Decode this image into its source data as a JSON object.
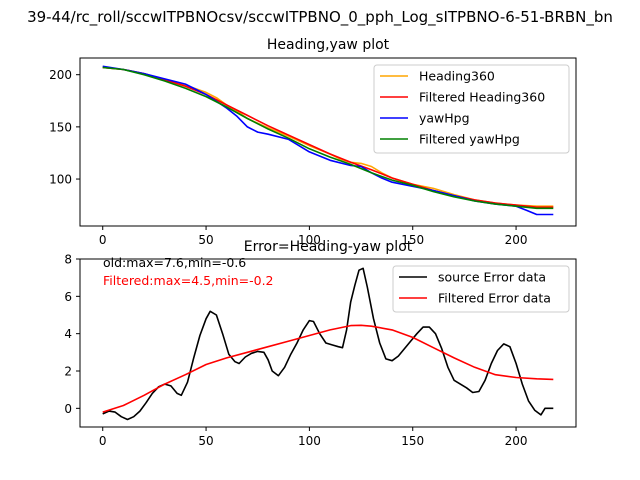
{
  "figure_title": "39-44/rc_roll/sccwITPBNOcsv/sccwITPBNO_0_pph_Log_sITPBNO-6-51-BRBN_bn",
  "chart_data": [
    {
      "type": "line",
      "title": "Heading,yaw plot",
      "xlabel": "",
      "ylabel": "",
      "xlim": [
        -11,
        229
      ],
      "ylim": [
        55,
        216
      ],
      "xticks": [
        0,
        50,
        100,
        150,
        200
      ],
      "yticks": [
        100,
        150,
        200
      ],
      "grid": false,
      "legend_position": "upper right",
      "series": [
        {
          "name": "Heading360",
          "color": "#ffa500",
          "points": [
            [
              0,
              207
            ],
            [
              10,
              205
            ],
            [
              20,
              201
            ],
            [
              30,
              195
            ],
            [
              40,
              190
            ],
            [
              50,
              183
            ],
            [
              55,
              178
            ],
            [
              60,
              171
            ],
            [
              65,
              165
            ],
            [
              70,
              158
            ],
            [
              80,
              149
            ],
            [
              90,
              141
            ],
            [
              100,
              132
            ],
            [
              110,
              124
            ],
            [
              115,
              119
            ],
            [
              120,
              116
            ],
            [
              125,
              115
            ],
            [
              130,
              112
            ],
            [
              135,
              106
            ],
            [
              140,
              101
            ],
            [
              150,
              95
            ],
            [
              160,
              91
            ],
            [
              170,
              85
            ],
            [
              180,
              80
            ],
            [
              190,
              77
            ],
            [
              200,
              75
            ],
            [
              210,
              74
            ],
            [
              218,
              74
            ]
          ]
        },
        {
          "name": "Filtered Heading360",
          "color": "#ff0000",
          "points": [
            [
              0,
              207
            ],
            [
              10,
              205
            ],
            [
              20,
              201
            ],
            [
              30,
              195
            ],
            [
              40,
              189
            ],
            [
              50,
              181
            ],
            [
              60,
              171
            ],
            [
              70,
              161
            ],
            [
              80,
              151
            ],
            [
              90,
              142
            ],
            [
              100,
              133
            ],
            [
              110,
              124
            ],
            [
              120,
              116
            ],
            [
              130,
              109
            ],
            [
              140,
              101
            ],
            [
              150,
              95
            ],
            [
              160,
              89
            ],
            [
              170,
              84
            ],
            [
              180,
              80
            ],
            [
              190,
              77
            ],
            [
              200,
              75
            ],
            [
              210,
              73
            ],
            [
              218,
              73
            ]
          ]
        },
        {
          "name": "yawHpg",
          "color": "#0000ff",
          "points": [
            [
              0,
              208
            ],
            [
              10,
              205
            ],
            [
              20,
              201
            ],
            [
              30,
              196
            ],
            [
              40,
              191
            ],
            [
              50,
              181
            ],
            [
              60,
              168
            ],
            [
              65,
              160
            ],
            [
              70,
              150
            ],
            [
              75,
              145
            ],
            [
              80,
              143
            ],
            [
              90,
              138
            ],
            [
              100,
              126
            ],
            [
              110,
              118
            ],
            [
              120,
              113
            ],
            [
              125,
              112
            ],
            [
              130,
              106
            ],
            [
              135,
              101
            ],
            [
              140,
              97
            ],
            [
              150,
              93
            ],
            [
              160,
              89
            ],
            [
              170,
              84
            ],
            [
              180,
              79
            ],
            [
              190,
              76
            ],
            [
              200,
              74
            ],
            [
              205,
              70
            ],
            [
              210,
              66
            ],
            [
              218,
              66
            ]
          ]
        },
        {
          "name": "Filtered yawHpg",
          "color": "#008000",
          "points": [
            [
              0,
              207
            ],
            [
              10,
              205
            ],
            [
              20,
              200
            ],
            [
              30,
              194
            ],
            [
              40,
              187
            ],
            [
              50,
              179
            ],
            [
              60,
              169
            ],
            [
              70,
              158
            ],
            [
              80,
              148
            ],
            [
              90,
              139
            ],
            [
              100,
              129
            ],
            [
              110,
              121
            ],
            [
              120,
              114
            ],
            [
              130,
              106
            ],
            [
              140,
              99
            ],
            [
              150,
              94
            ],
            [
              160,
              88
            ],
            [
              170,
              83
            ],
            [
              180,
              79
            ],
            [
              190,
              76
            ],
            [
              200,
              74
            ],
            [
              210,
              72
            ],
            [
              218,
              72
            ]
          ]
        }
      ]
    },
    {
      "type": "line",
      "title": "Error=Heading-yaw plot",
      "xlabel": "",
      "ylabel": "",
      "xlim": [
        -11,
        229
      ],
      "ylim": [
        -1,
        8
      ],
      "xticks": [
        0,
        50,
        100,
        150,
        200
      ],
      "yticks": [
        0,
        2,
        4,
        6,
        8
      ],
      "grid": false,
      "legend_position": "upper right",
      "annotations": [
        {
          "text": "old:max=7.6,min=-0.6",
          "color": "#000000"
        },
        {
          "text": "Filtered:max=4.5,min=-0.2",
          "color": "#ff0000"
        }
      ],
      "series": [
        {
          "name": "source Error data",
          "color": "#000000",
          "points": [
            [
              0,
              -0.3
            ],
            [
              3,
              -0.15
            ],
            [
              6,
              -0.2
            ],
            [
              9,
              -0.45
            ],
            [
              12,
              -0.6
            ],
            [
              15,
              -0.45
            ],
            [
              18,
              -0.15
            ],
            [
              21,
              0.3
            ],
            [
              24,
              0.8
            ],
            [
              27,
              1.15
            ],
            [
              30,
              1.3
            ],
            [
              33,
              1.2
            ],
            [
              36,
              0.8
            ],
            [
              38,
              0.7
            ],
            [
              41,
              1.4
            ],
            [
              44,
              2.7
            ],
            [
              47,
              3.9
            ],
            [
              50,
              4.8
            ],
            [
              52,
              5.2
            ],
            [
              55,
              5.0
            ],
            [
              58,
              4.0
            ],
            [
              61,
              2.9
            ],
            [
              64,
              2.5
            ],
            [
              66,
              2.4
            ],
            [
              69,
              2.75
            ],
            [
              72,
              2.95
            ],
            [
              75,
              3.05
            ],
            [
              78,
              3.0
            ],
            [
              80,
              2.6
            ],
            [
              82,
              2.0
            ],
            [
              85,
              1.75
            ],
            [
              88,
              2.2
            ],
            [
              91,
              2.9
            ],
            [
              94,
              3.5
            ],
            [
              97,
              4.2
            ],
            [
              100,
              4.7
            ],
            [
              102,
              4.65
            ],
            [
              105,
              4.0
            ],
            [
              108,
              3.5
            ],
            [
              111,
              3.4
            ],
            [
              114,
              3.3
            ],
            [
              116,
              3.25
            ],
            [
              118,
              4.2
            ],
            [
              120,
              5.7
            ],
            [
              122,
              6.6
            ],
            [
              124,
              7.4
            ],
            [
              126,
              7.5
            ],
            [
              128,
              6.5
            ],
            [
              131,
              4.8
            ],
            [
              134,
              3.5
            ],
            [
              137,
              2.65
            ],
            [
              140,
              2.55
            ],
            [
              143,
              2.8
            ],
            [
              146,
              3.2
            ],
            [
              149,
              3.6
            ],
            [
              152,
              4.0
            ],
            [
              155,
              4.35
            ],
            [
              158,
              4.35
            ],
            [
              161,
              4.0
            ],
            [
              164,
              3.2
            ],
            [
              167,
              2.2
            ],
            [
              170,
              1.5
            ],
            [
              173,
              1.3
            ],
            [
              176,
              1.1
            ],
            [
              179,
              0.85
            ],
            [
              182,
              0.9
            ],
            [
              185,
              1.5
            ],
            [
              188,
              2.4
            ],
            [
              191,
              3.1
            ],
            [
              194,
              3.45
            ],
            [
              197,
              3.3
            ],
            [
              200,
              2.4
            ],
            [
              203,
              1.3
            ],
            [
              206,
              0.4
            ],
            [
              209,
              -0.1
            ],
            [
              212,
              -0.35
            ],
            [
              214,
              0.0
            ],
            [
              218,
              0.0
            ]
          ]
        },
        {
          "name": "Filtered Error data",
          "color": "#ff0000",
          "points": [
            [
              0,
              -0.2
            ],
            [
              10,
              0.15
            ],
            [
              20,
              0.7
            ],
            [
              30,
              1.3
            ],
            [
              40,
              1.8
            ],
            [
              50,
              2.35
            ],
            [
              60,
              2.7
            ],
            [
              70,
              3.0
            ],
            [
              80,
              3.3
            ],
            [
              90,
              3.6
            ],
            [
              100,
              3.9
            ],
            [
              110,
              4.2
            ],
            [
              120,
              4.43
            ],
            [
              125,
              4.45
            ],
            [
              130,
              4.4
            ],
            [
              140,
              4.2
            ],
            [
              150,
              3.8
            ],
            [
              160,
              3.25
            ],
            [
              170,
              2.7
            ],
            [
              180,
              2.2
            ],
            [
              190,
              1.8
            ],
            [
              200,
              1.65
            ],
            [
              210,
              1.58
            ],
            [
              218,
              1.55
            ]
          ]
        }
      ]
    }
  ]
}
